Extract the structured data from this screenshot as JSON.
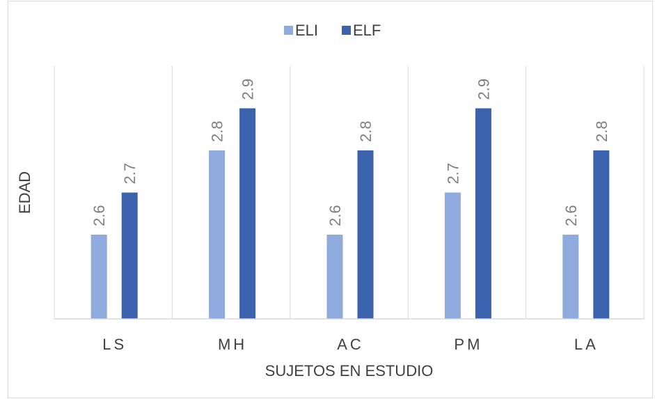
{
  "chart_data": {
    "type": "bar",
    "categories": [
      "LS",
      "MH",
      "AC",
      "PM",
      "LA"
    ],
    "series": [
      {
        "name": "ELI",
        "values": [
          2.6,
          2.8,
          2.6,
          2.7,
          2.6
        ],
        "color": "#8faadc"
      },
      {
        "name": "ELF",
        "values": [
          2.7,
          2.9,
          2.8,
          2.9,
          2.8
        ],
        "color": "#3a62ad"
      }
    ],
    "title": "",
    "xlabel": "SUJETOS EN ESTUDIO",
    "ylabel": "EDAD",
    "ylim": [
      2.4,
      3.0
    ],
    "grid": "vertical-category-separators",
    "legend_position": "top",
    "data_labels": true
  },
  "colors": {
    "gridline": "#d9d9d9",
    "axis": "#d9d9d9",
    "frame": "#d9d9d9"
  }
}
